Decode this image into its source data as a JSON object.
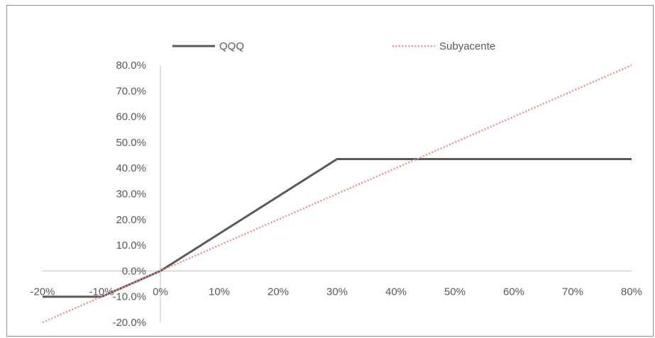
{
  "chart_data": {
    "type": "line",
    "title": "",
    "xlabel": "",
    "ylabel": "",
    "xlim": [
      -0.2,
      0.8
    ],
    "ylim": [
      -0.2,
      0.8
    ],
    "x_ticks": [
      -0.2,
      -0.1,
      0.0,
      0.1,
      0.2,
      0.3,
      0.4,
      0.5,
      0.6,
      0.7,
      0.8
    ],
    "x_tick_labels": [
      "-20%",
      "-10%",
      "0%",
      "10%",
      "20%",
      "30%",
      "40%",
      "50%",
      "60%",
      "70%",
      "80%"
    ],
    "y_ticks": [
      0.8,
      0.7,
      0.6,
      0.5,
      0.4,
      0.3,
      0.2,
      0.1,
      0.0,
      -0.1,
      -0.2
    ],
    "y_tick_labels": [
      "80.0%",
      "70.0%",
      "60.0%",
      "50.0%",
      "40.0%",
      "30.0%",
      "20.0%",
      "10.0%",
      "0.0%",
      "-10.0%",
      "-20.0%"
    ],
    "grid": false,
    "legend_position": "top",
    "series": [
      {
        "name": "QQQ",
        "color": "#595959",
        "style": "solid",
        "x": [
          -0.2,
          -0.1,
          0.0,
          0.3,
          0.8
        ],
        "y": [
          -0.1,
          -0.1,
          0.0,
          0.435,
          0.435
        ]
      },
      {
        "name": "Subyacente",
        "color": "#ee8c8c",
        "style": "dotted",
        "x": [
          -0.2,
          0.8
        ],
        "y": [
          -0.2,
          0.8
        ]
      }
    ]
  }
}
